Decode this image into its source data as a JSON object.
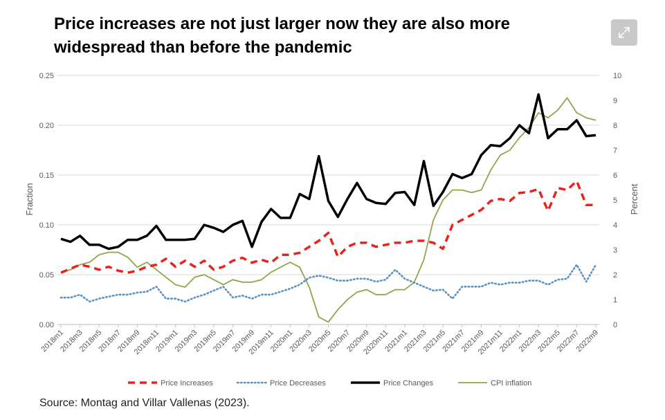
{
  "header": {
    "title": "Price increases are not just larger now they are also more widespread than before the pandemic"
  },
  "toolbar": {
    "expand_icon": "expand-icon"
  },
  "footer": {
    "source": "Source: Montag and Villar Vallenas (2023)."
  },
  "chart_data": {
    "type": "line",
    "title": "",
    "xlabel": "",
    "ylabel": "Fraction",
    "y2label": "Percent",
    "ylim": [
      0,
      0.25
    ],
    "y2lim": [
      0,
      10
    ],
    "yticks": [
      "0.00",
      "0.05",
      "0.10",
      "0.15",
      "0.20",
      "0.25"
    ],
    "y2ticks": [
      "0",
      "1",
      "2",
      "3",
      "4",
      "5",
      "6",
      "7",
      "8",
      "9",
      "10"
    ],
    "x": [
      "2018m1",
      "2018m2",
      "2018m3",
      "2018m4",
      "2018m5",
      "2018m6",
      "2018m7",
      "2018m8",
      "2018m9",
      "2018m10",
      "2018m11",
      "2018m12",
      "2019m1",
      "2019m2",
      "2019m3",
      "2019m4",
      "2019m5",
      "2019m6",
      "2019m7",
      "2019m8",
      "2019m9",
      "2019m10",
      "2019m11",
      "2019m12",
      "2020m1",
      "2020m2",
      "2020m3",
      "2020m4",
      "2020m5",
      "2020m6",
      "2020m7",
      "2020m8",
      "2020m9",
      "2020m10",
      "2020m11",
      "2020m12",
      "2021m1",
      "2021m2",
      "2021m3",
      "2021m4",
      "2021m5",
      "2021m6",
      "2021m7",
      "2021m8",
      "2021m9",
      "2021m10",
      "2021m11",
      "2021m12",
      "2022m1",
      "2022m2",
      "2022m3",
      "2022m4",
      "2022m5",
      "2022m6",
      "2022m7",
      "2022m8",
      "2022m9"
    ],
    "xticks": [
      "2018m1",
      "2018m3",
      "2018m5",
      "2018m7",
      "2018m9",
      "2018m11",
      "2019m1",
      "2019m3",
      "2019m5",
      "2019m7",
      "2019m9",
      "2019m11",
      "2020m1",
      "2020m3",
      "2020m5",
      "2020m7",
      "2020m9",
      "2020m11",
      "2021m1",
      "2021m3",
      "2021m5",
      "2021m7",
      "2021m9",
      "2021m11",
      "2022m1",
      "2022m3",
      "2022m5",
      "2022m7",
      "2022m9"
    ],
    "legend_position": "bottom",
    "grid": "horizontal",
    "series": [
      {
        "name": "Price Increases",
        "axis": "left",
        "color": "#e8231e",
        "style": "dashed",
        "values": [
          0.052,
          0.056,
          0.06,
          0.058,
          0.055,
          0.058,
          0.054,
          0.052,
          0.054,
          0.058,
          0.06,
          0.066,
          0.058,
          0.064,
          0.058,
          0.064,
          0.055,
          0.058,
          0.064,
          0.067,
          0.062,
          0.065,
          0.062,
          0.07,
          0.07,
          0.072,
          0.078,
          0.084,
          0.092,
          0.068,
          0.078,
          0.082,
          0.082,
          0.078,
          0.08,
          0.082,
          0.082,
          0.084,
          0.084,
          0.082,
          0.076,
          0.1,
          0.105,
          0.11,
          0.115,
          0.124,
          0.126,
          0.124,
          0.132,
          0.133,
          0.136,
          0.114,
          0.137,
          0.135,
          0.144,
          0.12,
          0.12
        ]
      },
      {
        "name": "Price Decreases",
        "axis": "left",
        "color": "#5a8fc7",
        "style": "dotted",
        "values": [
          0.027,
          0.027,
          0.03,
          0.023,
          0.026,
          0.028,
          0.03,
          0.03,
          0.032,
          0.033,
          0.038,
          0.026,
          0.026,
          0.023,
          0.027,
          0.03,
          0.034,
          0.038,
          0.027,
          0.029,
          0.026,
          0.03,
          0.03,
          0.033,
          0.036,
          0.04,
          0.047,
          0.049,
          0.047,
          0.044,
          0.044,
          0.046,
          0.046,
          0.043,
          0.045,
          0.055,
          0.046,
          0.042,
          0.038,
          0.034,
          0.035,
          0.026,
          0.038,
          0.038,
          0.038,
          0.042,
          0.04,
          0.042,
          0.042,
          0.044,
          0.044,
          0.04,
          0.045,
          0.046,
          0.06,
          0.043,
          0.06
        ]
      },
      {
        "name": "Price Changes",
        "axis": "left",
        "color": "#000000",
        "style": "solid",
        "values": [
          0.086,
          0.083,
          0.089,
          0.08,
          0.08,
          0.076,
          0.078,
          0.085,
          0.085,
          0.089,
          0.099,
          0.085,
          0.085,
          0.085,
          0.086,
          0.1,
          0.097,
          0.093,
          0.1,
          0.104,
          0.078,
          0.103,
          0.116,
          0.107,
          0.107,
          0.131,
          0.126,
          0.169,
          0.124,
          0.108,
          0.126,
          0.142,
          0.126,
          0.122,
          0.121,
          0.132,
          0.133,
          0.12,
          0.164,
          0.119,
          0.133,
          0.151,
          0.147,
          0.151,
          0.17,
          0.18,
          0.179,
          0.187,
          0.2,
          0.192,
          0.231,
          0.187,
          0.196,
          0.196,
          0.205,
          0.189,
          0.19
        ]
      },
      {
        "name": "CPI inflation",
        "axis": "right",
        "color": "#8aa84a",
        "style": "solid",
        "values": [
          2.1,
          2.2,
          2.4,
          2.5,
          2.8,
          2.9,
          2.9,
          2.7,
          2.3,
          2.5,
          2.2,
          1.9,
          1.6,
          1.5,
          1.9,
          2.0,
          1.8,
          1.6,
          1.8,
          1.7,
          1.7,
          1.8,
          2.1,
          2.3,
          2.5,
          2.3,
          1.5,
          0.3,
          0.1,
          0.6,
          1.0,
          1.3,
          1.4,
          1.2,
          1.2,
          1.4,
          1.4,
          1.7,
          2.6,
          4.2,
          5.0,
          5.4,
          5.4,
          5.3,
          5.4,
          6.2,
          6.8,
          7.0,
          7.5,
          7.9,
          8.5,
          8.3,
          8.6,
          9.1,
          8.5,
          8.3,
          8.2
        ]
      }
    ]
  }
}
